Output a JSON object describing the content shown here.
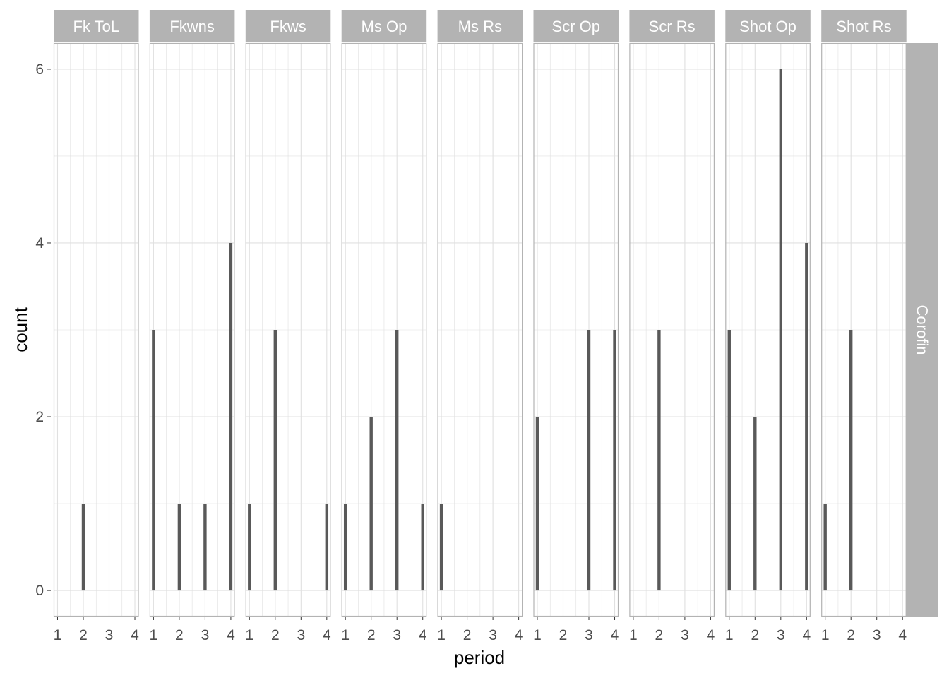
{
  "chart_data": {
    "type": "bar",
    "xlabel": "period",
    "ylabel": "count",
    "row_strip": "Corofin",
    "x_ticks": [
      "1",
      "2",
      "3",
      "4"
    ],
    "y_ticks": [
      "0",
      "2",
      "4",
      "6"
    ],
    "xlim": [
      0.85,
      4.15
    ],
    "ylim": [
      -0.3,
      6.3
    ],
    "grid": true,
    "colors": {
      "bar": "#595959",
      "strip": "#b3b3b3",
      "grid": "#e0e0e0",
      "panel_border": "#b3b3b3",
      "tick": "#4d4d4d"
    },
    "panels": [
      {
        "label": "Fk ToL",
        "x": [
          2
        ],
        "values": [
          1
        ]
      },
      {
        "label": "Fkwns",
        "x": [
          1,
          2,
          3,
          4
        ],
        "values": [
          3,
          1,
          1,
          4
        ]
      },
      {
        "label": "Fkws",
        "x": [
          1,
          2,
          4
        ],
        "values": [
          1,
          3,
          1
        ]
      },
      {
        "label": "Ms Op",
        "x": [
          1,
          2,
          3,
          4
        ],
        "values": [
          1,
          2,
          3,
          1
        ]
      },
      {
        "label": "Ms Rs",
        "x": [
          1
        ],
        "values": [
          1
        ]
      },
      {
        "label": "Scr Op",
        "x": [
          1,
          3,
          4
        ],
        "values": [
          2,
          3,
          3
        ]
      },
      {
        "label": "Scr Rs",
        "x": [
          2
        ],
        "values": [
          3
        ]
      },
      {
        "label": "Shot Op",
        "x": [
          1,
          2,
          3,
          4
        ],
        "values": [
          3,
          2,
          6,
          4
        ]
      },
      {
        "label": "Shot Rs",
        "x": [
          1,
          2
        ],
        "values": [
          1,
          3
        ]
      }
    ]
  }
}
